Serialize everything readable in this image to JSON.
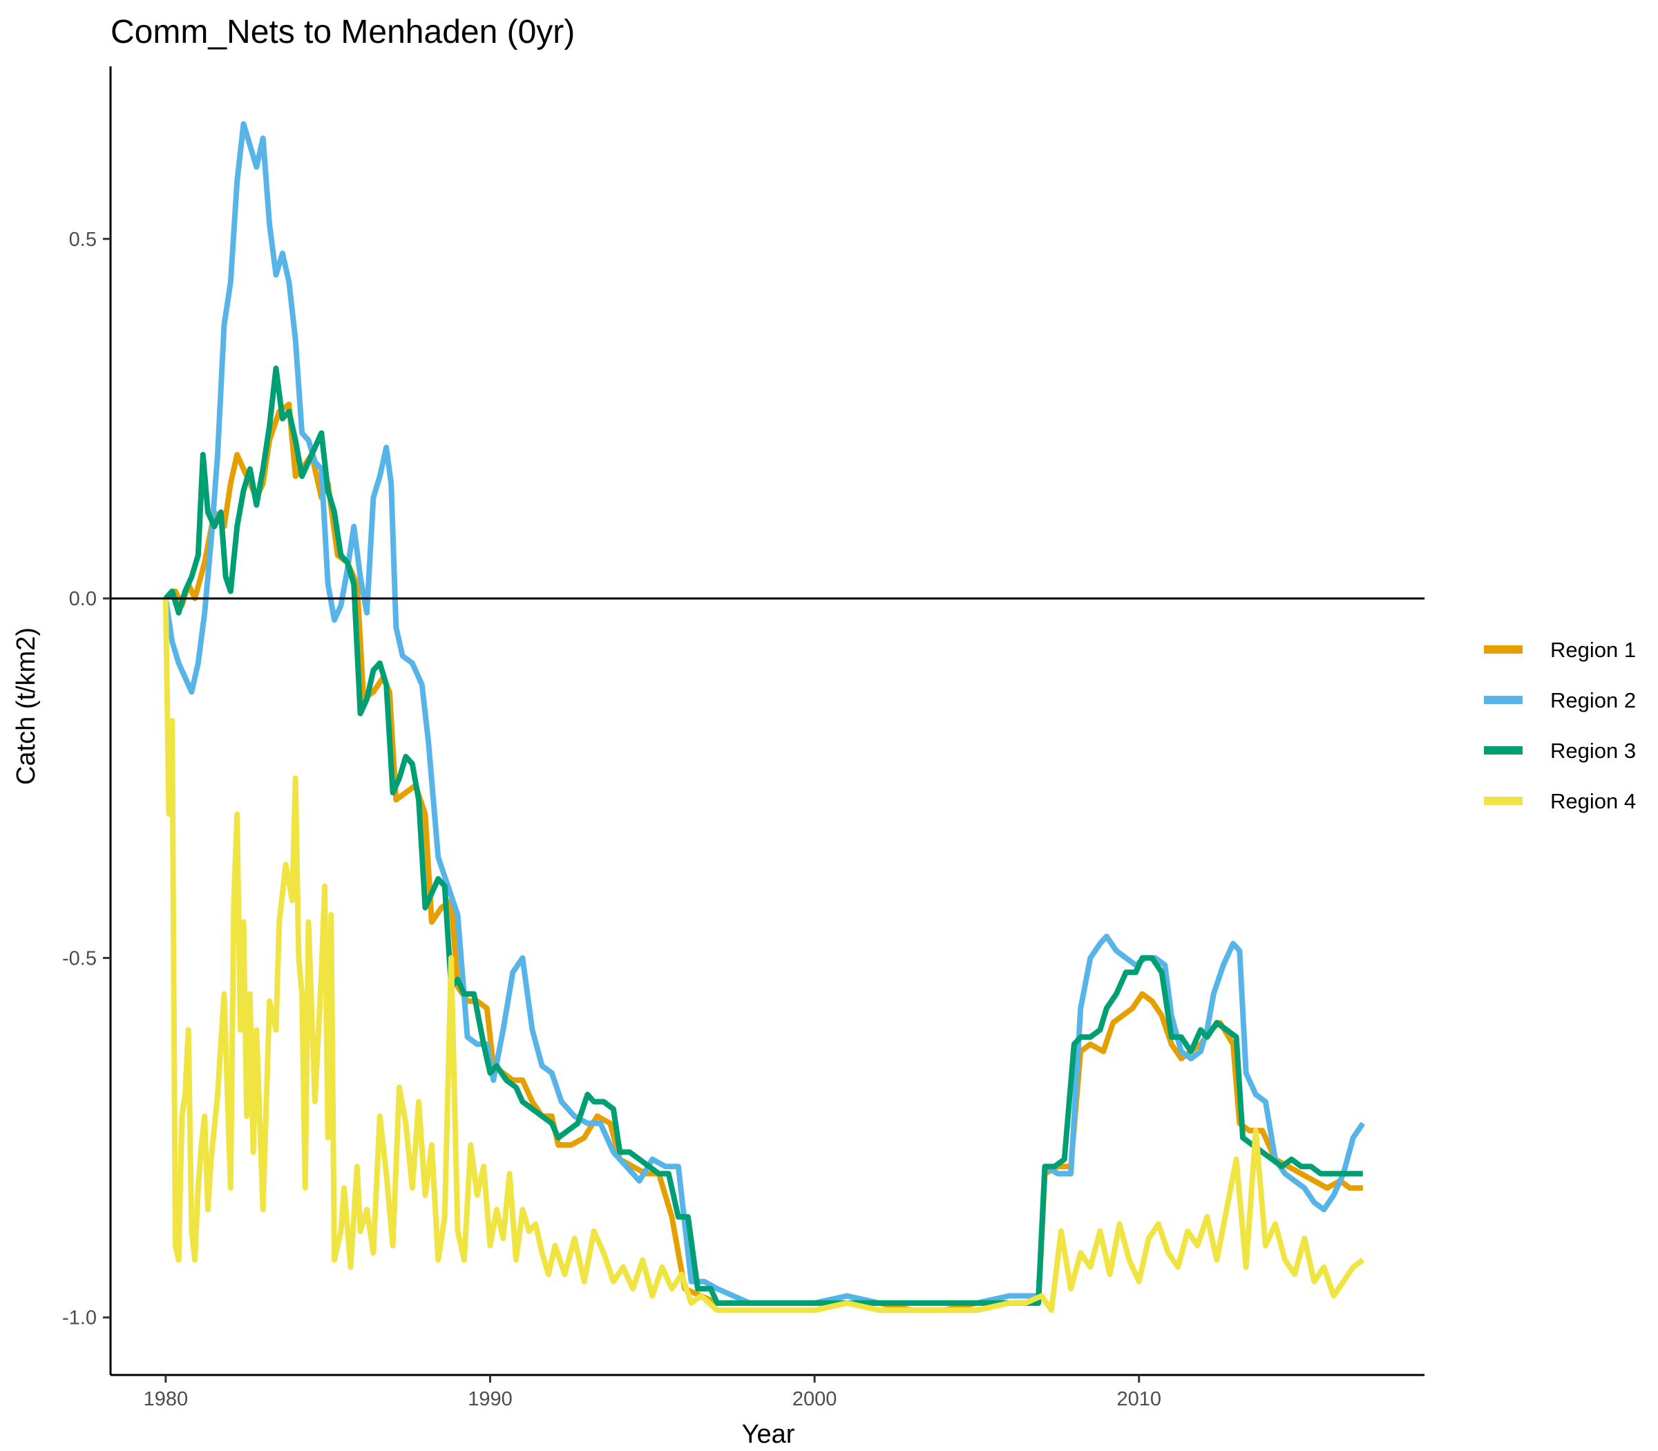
{
  "chart_data": {
    "type": "line",
    "title": "Comm_Nets to Menhaden (0yr)",
    "xlabel": "Year",
    "ylabel": "Catch (t/km2)",
    "xlim": [
      1978.3,
      2018.8
    ],
    "ylim": [
      -1.08,
      0.74
    ],
    "x_ticks": [
      1980,
      1990,
      2000,
      2010
    ],
    "x_tick_labels": [
      "1980",
      "1990",
      "2000",
      "2010"
    ],
    "y_ticks": [
      -1.0,
      -0.5,
      0.0,
      0.5
    ],
    "y_tick_labels": [
      "-1.0",
      "-0.5",
      "0.0",
      "0.5"
    ],
    "reference_line_y": 0,
    "grid": false,
    "legend_position": "right",
    "series": [
      {
        "name": "Region 1",
        "color": "#E69F00",
        "x": [
          1980.0,
          1980.3,
          1980.5,
          1980.7,
          1980.9,
          1981.2,
          1981.5,
          1981.8,
          1982.0,
          1982.2,
          1982.5,
          1982.8,
          1983.0,
          1983.2,
          1983.5,
          1983.8,
          1984.0,
          1984.2,
          1984.5,
          1984.8,
          1985.0,
          1985.3,
          1985.6,
          1985.9,
          1986.1,
          1986.4,
          1986.7,
          1986.9,
          1987.1,
          1987.4,
          1987.7,
          1988.0,
          1988.2,
          1988.5,
          1988.8,
          1989.0,
          1989.3,
          1989.6,
          1989.9,
          1990.1,
          1990.4,
          1990.7,
          1991.0,
          1991.3,
          1991.6,
          1991.9,
          1992.1,
          1992.5,
          1992.9,
          1993.3,
          1993.7,
          1994.0,
          1994.4,
          1994.8,
          1995.2,
          1995.6,
          1996.0,
          1996.5,
          1997.0,
          1998.0,
          1999.0,
          2000.0,
          2001.0,
          2002.0,
          2003.0,
          2004.0,
          2005.0,
          2006.0,
          2006.9,
          2007.1,
          2007.5,
          2007.9,
          2008.2,
          2008.5,
          2008.9,
          2009.2,
          2009.5,
          2009.8,
          2010.1,
          2010.4,
          2010.7,
          2011.0,
          2011.3,
          2011.6,
          2011.9,
          2012.2,
          2012.5,
          2012.9,
          2013.1,
          2013.4,
          2013.8,
          2014.2,
          2014.6,
          2015.0,
          2015.4,
          2015.8,
          2016.2,
          2016.5,
          2016.9
        ],
        "values": [
          0.0,
          0.01,
          -0.01,
          0.02,
          0.0,
          0.05,
          0.12,
          0.1,
          0.16,
          0.2,
          0.17,
          0.14,
          0.16,
          0.22,
          0.26,
          0.27,
          0.17,
          0.18,
          0.2,
          0.14,
          0.16,
          0.06,
          0.05,
          0.02,
          -0.14,
          -0.13,
          -0.11,
          -0.13,
          -0.28,
          -0.27,
          -0.26,
          -0.3,
          -0.45,
          -0.43,
          -0.42,
          -0.54,
          -0.56,
          -0.56,
          -0.57,
          -0.65,
          -0.66,
          -0.67,
          -0.67,
          -0.7,
          -0.72,
          -0.72,
          -0.76,
          -0.76,
          -0.75,
          -0.72,
          -0.73,
          -0.78,
          -0.79,
          -0.8,
          -0.8,
          -0.86,
          -0.96,
          -0.97,
          -0.98,
          -0.98,
          -0.98,
          -0.98,
          -0.98,
          -0.98,
          -0.99,
          -0.99,
          -0.98,
          -0.98,
          -0.98,
          -0.8,
          -0.79,
          -0.79,
          -0.63,
          -0.62,
          -0.63,
          -0.59,
          -0.58,
          -0.57,
          -0.55,
          -0.56,
          -0.58,
          -0.62,
          -0.64,
          -0.63,
          -0.62,
          -0.6,
          -0.59,
          -0.62,
          -0.73,
          -0.74,
          -0.74,
          -0.78,
          -0.79,
          -0.8,
          -0.81,
          -0.82,
          -0.81,
          -0.82,
          -0.82
        ]
      },
      {
        "name": "Region 2",
        "color": "#56B4E9",
        "x": [
          1980.0,
          1980.2,
          1980.4,
          1980.6,
          1980.8,
          1981.0,
          1981.2,
          1981.4,
          1981.6,
          1981.8,
          1982.0,
          1982.2,
          1982.4,
          1982.6,
          1982.8,
          1983.0,
          1983.2,
          1983.4,
          1983.6,
          1983.8,
          1984.0,
          1984.2,
          1984.4,
          1984.6,
          1984.8,
          1985.0,
          1985.2,
          1985.4,
          1985.6,
          1985.8,
          1986.0,
          1986.2,
          1986.4,
          1986.6,
          1986.8,
          1986.95,
          1987.1,
          1987.3,
          1987.6,
          1987.9,
          1988.1,
          1988.4,
          1988.7,
          1989.0,
          1989.3,
          1989.6,
          1989.9,
          1990.1,
          1990.4,
          1990.7,
          1991.0,
          1991.3,
          1991.6,
          1991.9,
          1992.2,
          1992.6,
          1993.0,
          1993.4,
          1993.8,
          1994.2,
          1994.6,
          1995.0,
          1995.4,
          1995.8,
          1996.2,
          1996.6,
          1997.0,
          1998.0,
          1999.0,
          2000.0,
          2001.0,
          2002.0,
          2003.0,
          2004.0,
          2005.0,
          2006.0,
          2006.9,
          2007.1,
          2007.5,
          2007.9,
          2008.2,
          2008.5,
          2008.8,
          2009.0,
          2009.3,
          2009.6,
          2009.9,
          2010.2,
          2010.5,
          2010.8,
          2011.0,
          2011.3,
          2011.6,
          2011.9,
          2012.1,
          2012.3,
          2012.6,
          2012.9,
          2013.1,
          2013.3,
          2013.6,
          2013.9,
          2014.2,
          2014.5,
          2014.8,
          2015.1,
          2015.4,
          2015.7,
          2016.0,
          2016.3,
          2016.6,
          2016.9
        ],
        "values": [
          0.0,
          -0.06,
          -0.09,
          -0.11,
          -0.13,
          -0.09,
          -0.02,
          0.08,
          0.2,
          0.38,
          0.44,
          0.58,
          0.66,
          0.63,
          0.6,
          0.64,
          0.52,
          0.45,
          0.48,
          0.44,
          0.36,
          0.23,
          0.22,
          0.19,
          0.18,
          0.02,
          -0.03,
          -0.01,
          0.04,
          0.1,
          0.03,
          -0.02,
          0.14,
          0.17,
          0.21,
          0.16,
          -0.04,
          -0.08,
          -0.09,
          -0.12,
          -0.2,
          -0.36,
          -0.4,
          -0.44,
          -0.61,
          -0.62,
          -0.62,
          -0.67,
          -0.6,
          -0.52,
          -0.5,
          -0.6,
          -0.65,
          -0.66,
          -0.7,
          -0.72,
          -0.73,
          -0.73,
          -0.77,
          -0.79,
          -0.81,
          -0.78,
          -0.79,
          -0.79,
          -0.95,
          -0.95,
          -0.96,
          -0.98,
          -0.98,
          -0.98,
          -0.97,
          -0.98,
          -0.98,
          -0.98,
          -0.98,
          -0.97,
          -0.97,
          -0.79,
          -0.8,
          -0.8,
          -0.57,
          -0.5,
          -0.48,
          -0.47,
          -0.49,
          -0.5,
          -0.51,
          -0.5,
          -0.5,
          -0.51,
          -0.58,
          -0.63,
          -0.64,
          -0.63,
          -0.6,
          -0.55,
          -0.51,
          -0.48,
          -0.49,
          -0.66,
          -0.69,
          -0.7,
          -0.78,
          -0.8,
          -0.81,
          -0.82,
          -0.84,
          -0.85,
          -0.83,
          -0.8,
          -0.75,
          -0.73
        ]
      },
      {
        "name": "Region 3",
        "color": "#009E73",
        "x": [
          1980.0,
          1980.2,
          1980.4,
          1980.6,
          1980.8,
          1981.0,
          1981.15,
          1981.3,
          1981.5,
          1981.7,
          1981.85,
          1982.0,
          1982.2,
          1982.4,
          1982.6,
          1982.8,
          1983.0,
          1983.2,
          1983.4,
          1983.6,
          1983.8,
          1984.0,
          1984.2,
          1984.4,
          1984.6,
          1984.8,
          1985.0,
          1985.2,
          1985.4,
          1985.6,
          1985.8,
          1986.0,
          1986.2,
          1986.4,
          1986.6,
          1986.8,
          1987.0,
          1987.2,
          1987.4,
          1987.6,
          1987.8,
          1988.0,
          1988.2,
          1988.4,
          1988.6,
          1988.8,
          1989.0,
          1989.2,
          1989.5,
          1989.8,
          1990.0,
          1990.2,
          1990.5,
          1990.8,
          1991.0,
          1991.3,
          1991.6,
          1991.9,
          1992.1,
          1992.4,
          1992.7,
          1993.0,
          1993.2,
          1993.5,
          1993.8,
          1994.0,
          1994.3,
          1994.6,
          1994.9,
          1995.2,
          1995.5,
          1995.8,
          1996.1,
          1996.4,
          1996.8,
          1997.0,
          1997.5,
          1998.0,
          1999.0,
          2000.0,
          2001.0,
          2002.0,
          2003.0,
          2004.0,
          2005.0,
          2006.0,
          2006.5,
          2006.9,
          2007.1,
          2007.4,
          2007.7,
          2008.0,
          2008.2,
          2008.5,
          2008.8,
          2009.0,
          2009.3,
          2009.6,
          2009.9,
          2010.1,
          2010.4,
          2010.7,
          2011.0,
          2011.3,
          2011.6,
          2011.9,
          2012.1,
          2012.4,
          2012.7,
          2013.0,
          2013.2,
          2013.5,
          2013.8,
          2014.1,
          2014.4,
          2014.7,
          2015.0,
          2015.3,
          2015.6,
          2015.9,
          2016.2,
          2016.5,
          2016.9
        ],
        "values": [
          0.0,
          0.01,
          -0.02,
          0.01,
          0.03,
          0.06,
          0.2,
          0.12,
          0.1,
          0.12,
          0.03,
          0.01,
          0.1,
          0.15,
          0.18,
          0.13,
          0.18,
          0.24,
          0.32,
          0.25,
          0.26,
          0.22,
          0.17,
          0.19,
          0.21,
          0.23,
          0.15,
          0.12,
          0.06,
          0.05,
          0.02,
          -0.16,
          -0.14,
          -0.1,
          -0.09,
          -0.12,
          -0.27,
          -0.25,
          -0.22,
          -0.23,
          -0.28,
          -0.43,
          -0.41,
          -0.39,
          -0.4,
          -0.54,
          -0.53,
          -0.55,
          -0.55,
          -0.62,
          -0.66,
          -0.65,
          -0.67,
          -0.68,
          -0.7,
          -0.71,
          -0.72,
          -0.73,
          -0.75,
          -0.74,
          -0.73,
          -0.69,
          -0.7,
          -0.7,
          -0.71,
          -0.77,
          -0.77,
          -0.78,
          -0.79,
          -0.8,
          -0.8,
          -0.86,
          -0.86,
          -0.96,
          -0.96,
          -0.98,
          -0.98,
          -0.98,
          -0.98,
          -0.98,
          -0.98,
          -0.98,
          -0.98,
          -0.98,
          -0.98,
          -0.98,
          -0.98,
          -0.98,
          -0.79,
          -0.79,
          -0.78,
          -0.62,
          -0.61,
          -0.61,
          -0.6,
          -0.57,
          -0.55,
          -0.52,
          -0.52,
          -0.5,
          -0.5,
          -0.52,
          -0.61,
          -0.61,
          -0.63,
          -0.6,
          -0.61,
          -0.59,
          -0.6,
          -0.61,
          -0.75,
          -0.76,
          -0.77,
          -0.78,
          -0.79,
          -0.78,
          -0.79,
          -0.79,
          -0.8,
          -0.8,
          -0.8,
          -0.8,
          -0.8
        ]
      },
      {
        "name": "Region 4",
        "color": "#F0E442",
        "x": [
          1980.0,
          1980.1,
          1980.2,
          1980.3,
          1980.4,
          1980.5,
          1980.6,
          1980.7,
          1980.8,
          1980.9,
          1981.0,
          1981.1,
          1981.2,
          1981.3,
          1981.4,
          1981.6,
          1981.8,
          1982.0,
          1982.1,
          1982.2,
          1982.3,
          1982.4,
          1982.5,
          1982.6,
          1982.7,
          1982.8,
          1983.0,
          1983.2,
          1983.4,
          1983.5,
          1983.7,
          1983.9,
          1984.0,
          1984.1,
          1984.2,
          1984.3,
          1984.4,
          1984.6,
          1984.8,
          1984.9,
          1985.0,
          1985.1,
          1985.2,
          1985.4,
          1985.5,
          1985.7,
          1985.9,
          1986.0,
          1986.2,
          1986.4,
          1986.6,
          1986.8,
          1987.0,
          1987.2,
          1987.4,
          1987.6,
          1987.8,
          1988.0,
          1988.2,
          1988.4,
          1988.6,
          1988.8,
          1989.0,
          1989.2,
          1989.4,
          1989.6,
          1989.8,
          1990.0,
          1990.2,
          1990.4,
          1990.6,
          1990.8,
          1991.0,
          1991.2,
          1991.4,
          1991.6,
          1991.8,
          1992.0,
          1992.3,
          1992.6,
          1992.9,
          1993.2,
          1993.5,
          1993.8,
          1994.1,
          1994.4,
          1994.7,
          1995.0,
          1995.3,
          1995.6,
          1995.9,
          1996.2,
          1996.5,
          1997.0,
          1998.0,
          1999.0,
          2000.0,
          2001.0,
          2002.0,
          2003.0,
          2004.0,
          2005.0,
          2006.0,
          2006.5,
          2007.0,
          2007.3,
          2007.6,
          2007.9,
          2008.2,
          2008.5,
          2008.8,
          2009.1,
          2009.4,
          2009.7,
          2010.0,
          2010.3,
          2010.6,
          2010.9,
          2011.2,
          2011.5,
          2011.8,
          2012.1,
          2012.4,
          2012.7,
          2013.0,
          2013.3,
          2013.6,
          2013.9,
          2014.2,
          2014.5,
          2014.8,
          2015.1,
          2015.4,
          2015.7,
          2016.0,
          2016.3,
          2016.6,
          2016.9
        ],
        "values": [
          0.0,
          -0.3,
          -0.17,
          -0.9,
          -0.92,
          -0.72,
          -0.69,
          -0.6,
          -0.88,
          -0.92,
          -0.82,
          -0.76,
          -0.72,
          -0.85,
          -0.78,
          -0.69,
          -0.55,
          -0.82,
          -0.42,
          -0.3,
          -0.6,
          -0.45,
          -0.72,
          -0.55,
          -0.77,
          -0.6,
          -0.85,
          -0.56,
          -0.6,
          -0.45,
          -0.37,
          -0.42,
          -0.25,
          -0.5,
          -0.55,
          -0.82,
          -0.45,
          -0.7,
          -0.52,
          -0.4,
          -0.75,
          -0.44,
          -0.92,
          -0.88,
          -0.82,
          -0.93,
          -0.79,
          -0.88,
          -0.85,
          -0.91,
          -0.72,
          -0.8,
          -0.9,
          -0.68,
          -0.73,
          -0.82,
          -0.7,
          -0.83,
          -0.76,
          -0.92,
          -0.86,
          -0.5,
          -0.88,
          -0.92,
          -0.76,
          -0.83,
          -0.79,
          -0.9,
          -0.85,
          -0.89,
          -0.8,
          -0.92,
          -0.85,
          -0.88,
          -0.87,
          -0.91,
          -0.94,
          -0.9,
          -0.94,
          -0.89,
          -0.95,
          -0.88,
          -0.91,
          -0.95,
          -0.93,
          -0.96,
          -0.92,
          -0.97,
          -0.93,
          -0.96,
          -0.94,
          -0.98,
          -0.97,
          -0.99,
          -0.99,
          -0.99,
          -0.99,
          -0.98,
          -0.99,
          -0.99,
          -0.99,
          -0.99,
          -0.98,
          -0.98,
          -0.97,
          -0.99,
          -0.88,
          -0.96,
          -0.91,
          -0.93,
          -0.88,
          -0.94,
          -0.87,
          -0.92,
          -0.95,
          -0.89,
          -0.87,
          -0.91,
          -0.93,
          -0.88,
          -0.9,
          -0.86,
          -0.92,
          -0.85,
          -0.78,
          -0.93,
          -0.74,
          -0.9,
          -0.87,
          -0.92,
          -0.94,
          -0.89,
          -0.95,
          -0.93,
          -0.97,
          -0.95,
          -0.93,
          -0.92
        ]
      }
    ]
  }
}
